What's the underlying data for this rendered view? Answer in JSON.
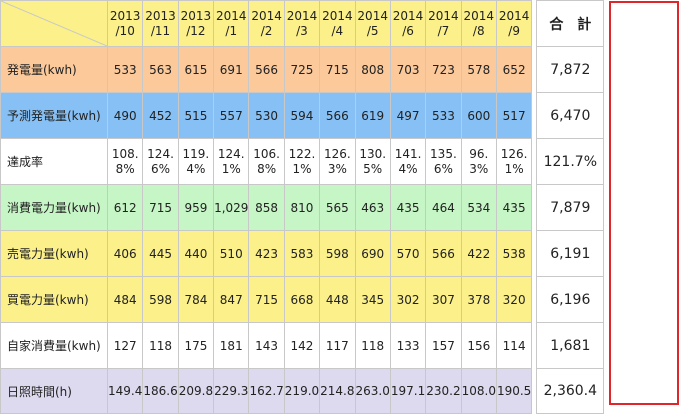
{
  "header": {
    "months": [
      {
        "year": "2013",
        "month": "/10"
      },
      {
        "year": "2013",
        "month": "/11"
      },
      {
        "year": "2013",
        "month": "/12"
      },
      {
        "year": "2014",
        "month": "/1"
      },
      {
        "year": "2014",
        "month": "/2"
      },
      {
        "year": "2014",
        "month": "/3"
      },
      {
        "year": "2014",
        "month": "/4"
      },
      {
        "year": "2014",
        "month": "/5"
      },
      {
        "year": "2014",
        "month": "/6"
      },
      {
        "year": "2014",
        "month": "/7"
      },
      {
        "year": "2014",
        "month": "/8"
      },
      {
        "year": "2014",
        "month": "/9"
      }
    ],
    "total_label": "合　計"
  },
  "rows": [
    {
      "label": "発電量(kwh)",
      "bg": "#fbc99a",
      "values": [
        "533",
        "563",
        "615",
        "691",
        "566",
        "725",
        "715",
        "808",
        "703",
        "723",
        "578",
        "652"
      ],
      "total": "7,872"
    },
    {
      "label": "予測発電量(kwh)",
      "bg": "#86c0f5",
      "values": [
        "490",
        "452",
        "515",
        "557",
        "530",
        "594",
        "566",
        "619",
        "497",
        "533",
        "600",
        "517"
      ],
      "total": "6,470"
    },
    {
      "label": "達成率",
      "bg": "#ffffff",
      "values": [
        [
          "108.",
          "8%"
        ],
        [
          "124.",
          "6%"
        ],
        [
          "119.",
          "4%"
        ],
        [
          "124.",
          "1%"
        ],
        [
          "106.",
          "8%"
        ],
        [
          "122.",
          "1%"
        ],
        [
          "126.",
          "3%"
        ],
        [
          "130.",
          "5%"
        ],
        [
          "141.",
          "4%"
        ],
        [
          "135.",
          "6%"
        ],
        [
          "96.",
          "3%"
        ],
        [
          "126.",
          "1%"
        ]
      ],
      "total": "121.7%"
    },
    {
      "label": "消費電力量(kwh)",
      "bg": "#c6f5c6",
      "values": [
        "612",
        "715",
        "959",
        "1,029",
        "858",
        "810",
        "565",
        "463",
        "435",
        "464",
        "534",
        "435"
      ],
      "total": "7,879"
    },
    {
      "label": "売電力量(kwh)",
      "bg": "#fbf08a",
      "values": [
        "406",
        "445",
        "440",
        "510",
        "423",
        "583",
        "598",
        "690",
        "570",
        "566",
        "422",
        "538"
      ],
      "total": "6,191"
    },
    {
      "label": "買電力量(kwh)",
      "bg": "#fbf08a",
      "values": [
        "484",
        "598",
        "784",
        "847",
        "715",
        "668",
        "448",
        "345",
        "302",
        "307",
        "378",
        "320"
      ],
      "total": "6,196"
    },
    {
      "label": "自家消費量(kwh)",
      "bg": "#ffffff",
      "values": [
        "127",
        "118",
        "175",
        "181",
        "143",
        "142",
        "117",
        "118",
        "133",
        "157",
        "156",
        "114"
      ],
      "total": "1,681"
    },
    {
      "label": "日照時間(h)",
      "bg": "#ddd9ee",
      "values": [
        "149.4",
        "186.6",
        "209.8",
        "229.3",
        "162.7",
        "219.0",
        "214.8",
        "263.0",
        "197.1",
        "230.2",
        "108.0",
        "190.5"
      ],
      "total": "2,360.4"
    }
  ],
  "colors": {
    "header_bg": "#fbf08a",
    "total_border": "#e0252b",
    "grid": "#c8c8c8"
  }
}
